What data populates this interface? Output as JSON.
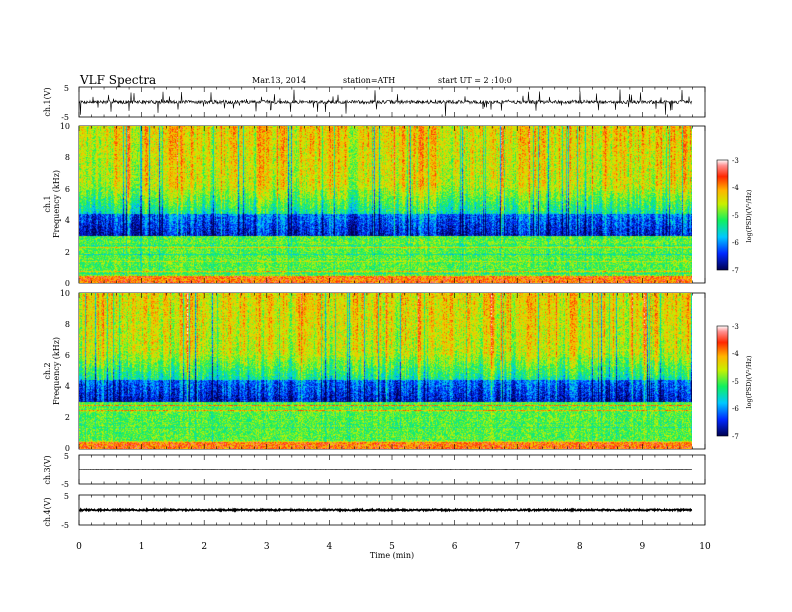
{
  "header": {
    "title": "VLF  Spectra",
    "date": "Mar.13, 2014",
    "station": "station=ATH",
    "start": "start  UT  =  2 :10:0"
  },
  "chart_data": {
    "type": "spectrogram",
    "panels": [
      {
        "id": "ch1-waveform",
        "ylabel": "ch.1(V)",
        "ylim": [
          -5,
          5
        ],
        "yticks": [
          "5",
          "-5"
        ],
        "amplitude": 0.6,
        "spike_rate": 0.07
      },
      {
        "id": "ch1-spectrogram",
        "ylabel_channel": "ch.1",
        "ylabel": "Frequency  (kHz)",
        "ylim": [
          0,
          10
        ],
        "yticks": [
          "0",
          "2",
          "4",
          "6",
          "8",
          "10"
        ],
        "colorbar": {
          "label": "log(PSD)(V²/Hz)",
          "range": [
            -7,
            -3
          ],
          "ticks": [
            "-3",
            "-4",
            "-5",
            "-6",
            "-7"
          ]
        },
        "seed": 17
      },
      {
        "id": "ch2-spectrogram",
        "ylabel_channel": "ch.2",
        "ylabel": "Frequency  (kHz)",
        "ylim": [
          0,
          10
        ],
        "yticks": [
          "0",
          "2",
          "4",
          "6",
          "8",
          "10"
        ],
        "colorbar": {
          "label": "log(PSD)(V²/Hz)",
          "range": [
            -7,
            -3
          ],
          "ticks": [
            "-3",
            "-4",
            "-5",
            "-6",
            "-7"
          ]
        },
        "seed": 41
      },
      {
        "id": "ch3-waveform",
        "ylabel": "ch.3(V)",
        "ylim": [
          -5,
          5
        ],
        "yticks": [
          "5",
          "-5"
        ],
        "amplitude": 0.08,
        "spike_rate": 0
      },
      {
        "id": "ch4-waveform",
        "ylabel": "ch.4(V)",
        "ylim": [
          -5,
          5
        ],
        "yticks": [
          "5",
          "-5"
        ],
        "amplitude": 0.25,
        "spike_rate": 0
      }
    ],
    "x": {
      "label": "Time  (min)",
      "range": [
        0,
        10
      ],
      "ticks": [
        "0",
        "1",
        "2",
        "3",
        "4",
        "5",
        "6",
        "7",
        "8",
        "9",
        "10"
      ],
      "data_end": 9.8
    },
    "colors": {
      "-7": "#000050",
      "-6.4": "#0028ff",
      "-5.8": "#00c8ff",
      "-5.2": "#10f060",
      "-4.6": "#c8f000",
      "-4.1": "#ffb400",
      "-3.6": "#ff2800",
      "-3.2": "#ff9090",
      "-3": "#ffffff"
    }
  }
}
